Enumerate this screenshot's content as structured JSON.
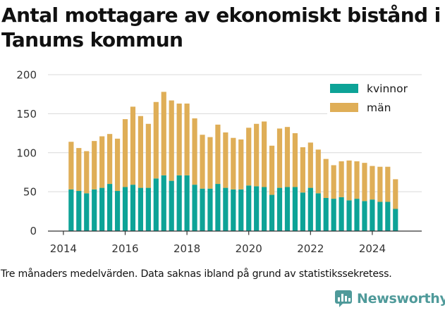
{
  "title": "Antal mottagare av ekonomiskt bistånd i Tanums kommun",
  "footnote": "Tre månaders medelvärden. Data saknas ibland på grund av statistikssekretess.",
  "brand": {
    "name": "Newsworthy",
    "icon": "newsworthy-chart-icon",
    "color": "#4f9a9a"
  },
  "colors": {
    "kvinnor": "#0da397",
    "man": "#dfae57",
    "grid": "#d9d9d9",
    "axis": "#333333"
  },
  "chart_data": {
    "type": "bar",
    "stacked": true,
    "xlim": [
      2013.5,
      2025.6
    ],
    "ylim": [
      0,
      200
    ],
    "x_ticks": [
      2014,
      2016,
      2018,
      2020,
      2022,
      2024
    ],
    "x_tick_labels": [
      "2014",
      "2016",
      "2018",
      "2020",
      "2022",
      "2024"
    ],
    "y_ticks": [
      0,
      50,
      100,
      150,
      200
    ],
    "y_tick_labels": [
      "0",
      "50",
      "100",
      "150",
      "200"
    ],
    "grid": "horizontal",
    "legend_position": "top-right",
    "x": [
      2014.25,
      2014.5,
      2014.75,
      2015.0,
      2015.25,
      2015.5,
      2015.75,
      2016.0,
      2016.25,
      2016.5,
      2016.75,
      2017.0,
      2017.25,
      2017.5,
      2017.75,
      2018.0,
      2018.25,
      2018.5,
      2018.75,
      2019.0,
      2019.25,
      2019.5,
      2019.75,
      2020.0,
      2020.25,
      2020.5,
      2020.75,
      2021.0,
      2021.25,
      2021.5,
      2021.75,
      2022.0,
      2022.25,
      2022.5,
      2022.75,
      2023.0,
      2023.25,
      2023.5,
      2023.75,
      2024.0,
      2024.25,
      2024.5,
      2024.75
    ],
    "series": [
      {
        "name": "kvinnor",
        "color": "#0da397",
        "values": [
          53,
          51,
          48,
          53,
          55,
          60,
          51,
          56,
          59,
          55,
          55,
          67,
          71,
          64,
          71,
          71,
          59,
          54,
          54,
          60,
          55,
          53,
          53,
          58,
          57,
          56,
          46,
          55,
          56,
          56,
          49,
          55,
          48,
          42,
          41,
          43,
          39,
          41,
          38,
          40,
          37,
          37,
          28
        ]
      },
      {
        "name": "män",
        "color": "#dfae57",
        "values": [
          61,
          55,
          54,
          62,
          66,
          64,
          67,
          87,
          100,
          92,
          82,
          98,
          107,
          103,
          92,
          92,
          85,
          69,
          66,
          76,
          71,
          66,
          64,
          74,
          80,
          84,
          63,
          76,
          77,
          69,
          58,
          58,
          56,
          50,
          43,
          46,
          51,
          48,
          49,
          43,
          45,
          45,
          38
        ]
      }
    ]
  }
}
